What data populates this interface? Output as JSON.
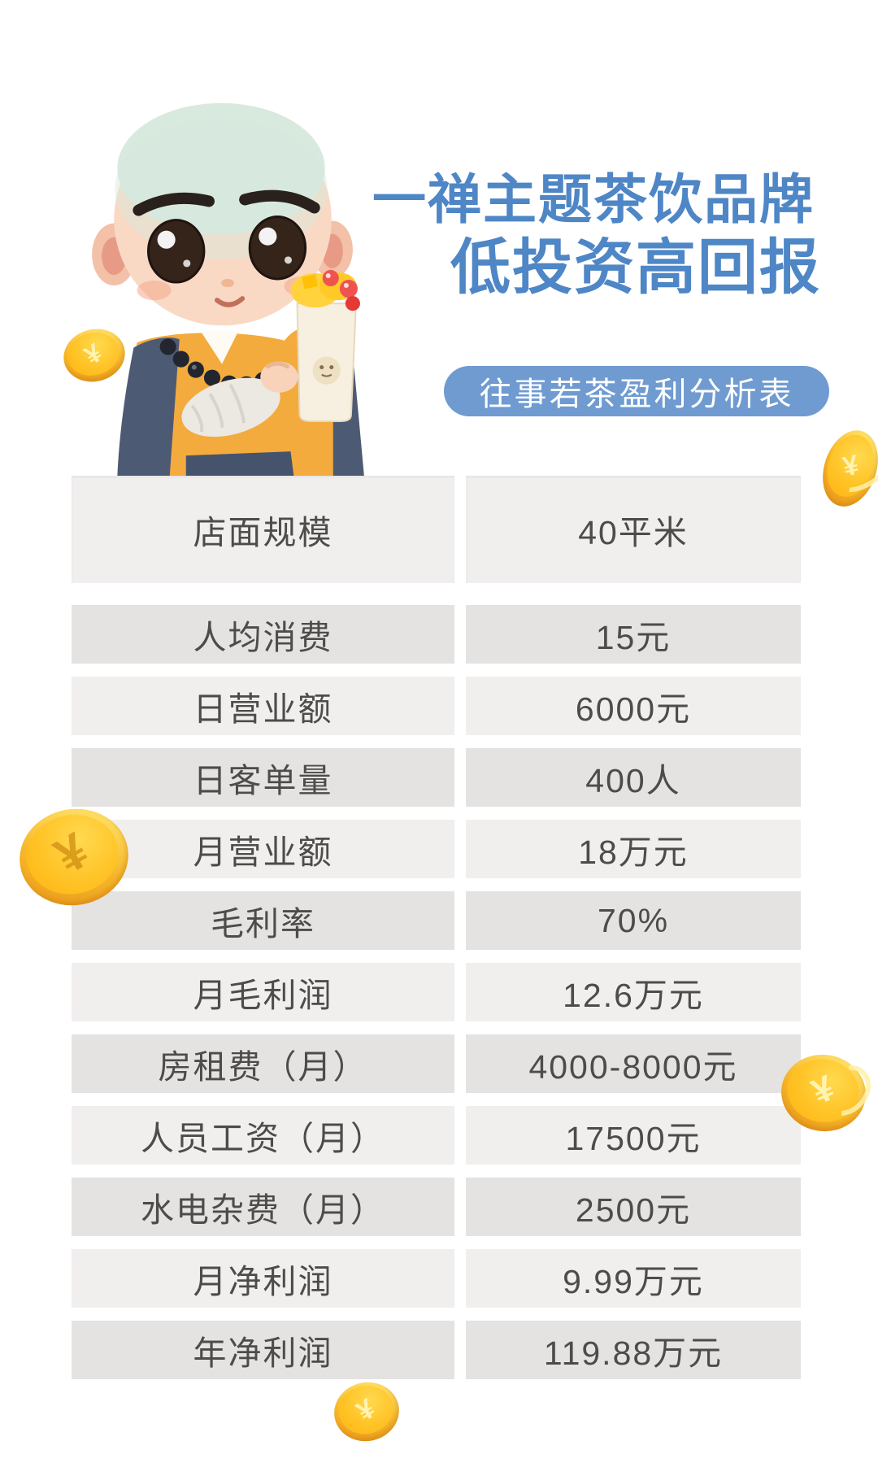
{
  "header": {
    "title_line1": "一禅主题茶饮品牌",
    "title_line2": "低投资高回报",
    "badge": "往事若茶盈利分析表"
  },
  "coin_symbol": "¥",
  "colors": {
    "title_blue": "#4e86c6",
    "badge_blue": "#6f9bd1",
    "row_light": "#f1efee",
    "row_dark": "#e5e3e1",
    "table_text": "#4d4c4b",
    "coin_gold": "#ffc326"
  },
  "table": {
    "rows": [
      {
        "label": "店面规模",
        "value": "40平米"
      },
      {
        "label": "人均消费",
        "value": "15元"
      },
      {
        "label": "日营业额",
        "value": "6000元"
      },
      {
        "label": "日客单量",
        "value": "400人"
      },
      {
        "label": "月营业额",
        "value": "18万元"
      },
      {
        "label": "毛利率",
        "value": "70%"
      },
      {
        "label": "月毛利润",
        "value": "12.6万元"
      },
      {
        "label": "房租费（月）",
        "value": "4000-8000元"
      },
      {
        "label": "人员工资（月）",
        "value": "17500元"
      },
      {
        "label": "水电杂费（月）",
        "value": "2500元"
      },
      {
        "label": "月净利润",
        "value": "9.99万元"
      },
      {
        "label": "年净利润",
        "value": "119.88万元"
      }
    ]
  }
}
